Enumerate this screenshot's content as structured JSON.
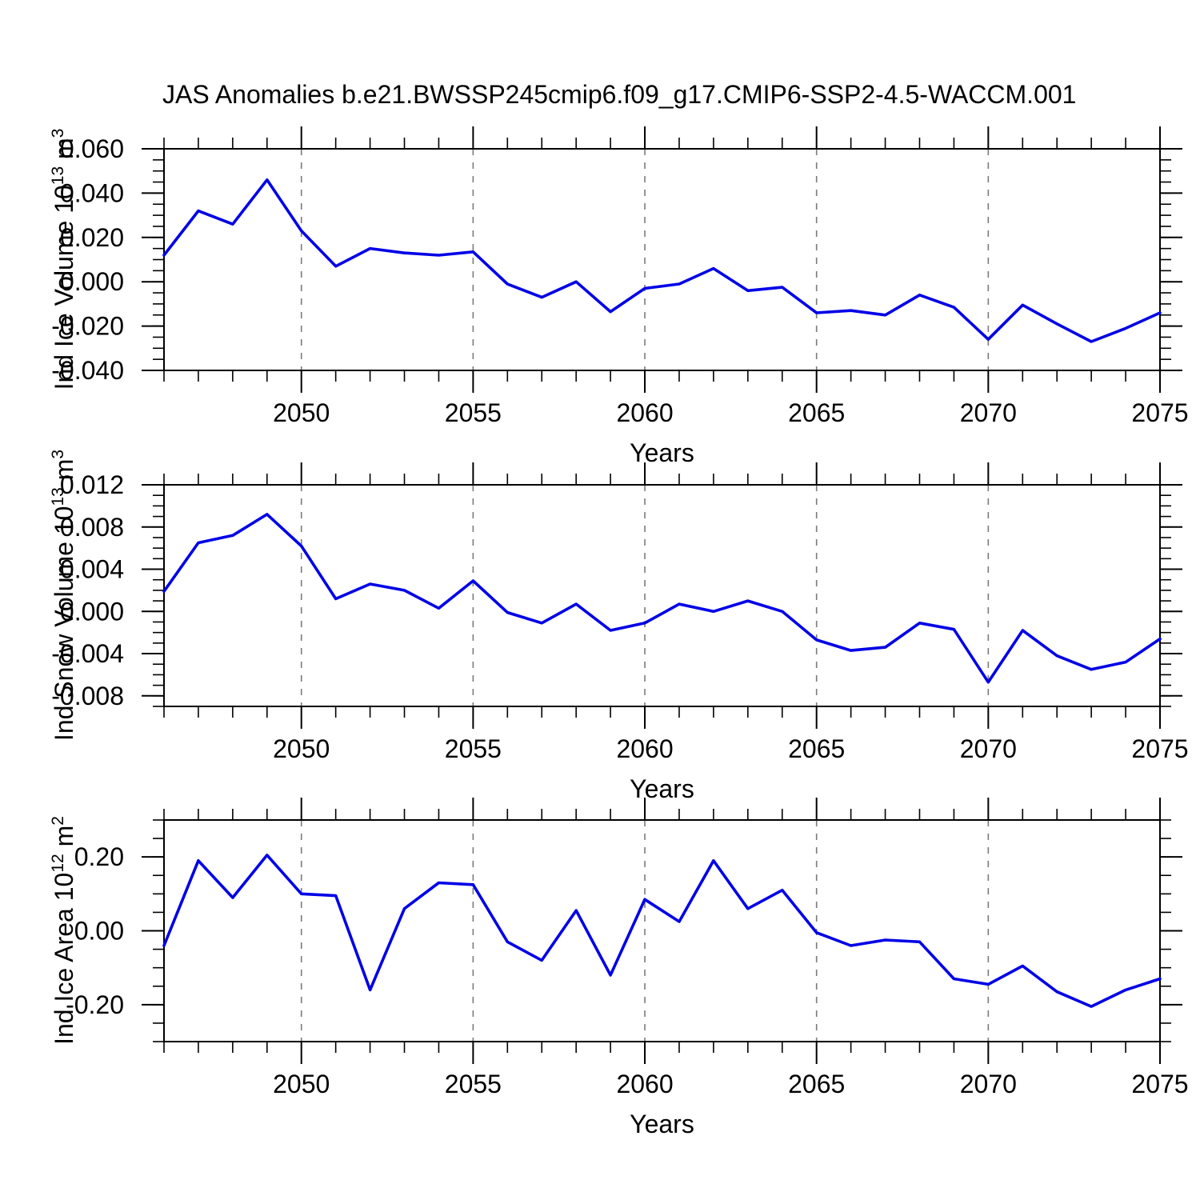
{
  "title": "JAS Anomalies b.e21.BWSSP245cmip6.f09_g17.CMIP6-SSP2-4.5-WACCM.001",
  "colors": {
    "line": "#0000e8",
    "grid": "#7b7b7b",
    "axis": "#000000",
    "text": "#000000",
    "background": "#ffffff"
  },
  "x_axis": {
    "label": "Years",
    "range": [
      2046,
      2075
    ],
    "major_ticks": [
      2050,
      2055,
      2060,
      2065,
      2070,
      2075
    ],
    "minor_step_years": 1,
    "dashed_gridline_years": [
      2050,
      2055,
      2060,
      2065,
      2070
    ]
  },
  "chart_data": [
    {
      "type": "line",
      "name": "ind-ice-volume",
      "ylabel": {
        "base": "Ind Ice Volume 10",
        "exp": "13",
        "unit": " m",
        "unit_exp": "3"
      },
      "ylim": [
        -0.04,
        0.06
      ],
      "ytick_values": [
        0.06,
        0.04,
        0.02,
        0.0,
        -0.02,
        -0.04
      ],
      "ytick_labels": [
        "0.060",
        "0.040",
        "0.020",
        "0.000",
        "-0.020",
        "-0.040"
      ],
      "yminor_step": 0.005,
      "x": [
        2046,
        2047,
        2048,
        2049,
        2050,
        2051,
        2052,
        2053,
        2054,
        2055,
        2056,
        2057,
        2058,
        2059,
        2060,
        2061,
        2062,
        2063,
        2064,
        2065,
        2066,
        2067,
        2068,
        2069,
        2070,
        2071,
        2072,
        2073,
        2074,
        2075
      ],
      "values": [
        0.012,
        0.032,
        0.026,
        0.046,
        0.023,
        0.007,
        0.015,
        0.013,
        0.012,
        0.0135,
        -0.001,
        -0.007,
        0.0,
        -0.0135,
        -0.003,
        -0.001,
        0.006,
        -0.004,
        -0.0025,
        -0.014,
        -0.013,
        -0.015,
        -0.006,
        -0.0115,
        -0.026,
        -0.0105,
        -0.019,
        -0.027,
        -0.021,
        -0.014
      ]
    },
    {
      "type": "line",
      "name": "ind-snow-volume",
      "ylabel": {
        "base": "Ind Snow Volume 10",
        "exp": "13",
        "unit": " m",
        "unit_exp": "3"
      },
      "ylim": [
        -0.009,
        0.012
      ],
      "ytick_values": [
        0.012,
        0.008,
        0.004,
        0.0,
        -0.004,
        -0.008
      ],
      "ytick_labels": [
        "0.012",
        "0.008",
        "0.004",
        "0.000",
        "-0.004",
        "-0.008"
      ],
      "yminor_step": 0.001,
      "x": [
        2046,
        2047,
        2048,
        2049,
        2050,
        2051,
        2052,
        2053,
        2054,
        2055,
        2056,
        2057,
        2058,
        2059,
        2060,
        2061,
        2062,
        2063,
        2064,
        2065,
        2066,
        2067,
        2068,
        2069,
        2070,
        2071,
        2072,
        2073,
        2074,
        2075
      ],
      "values": [
        0.0019,
        0.0065,
        0.0072,
        0.0092,
        0.0062,
        0.0012,
        0.0026,
        0.002,
        0.0003,
        0.0029,
        -0.0001,
        -0.0011,
        0.0007,
        -0.0018,
        -0.0011,
        0.0007,
        0.0,
        0.001,
        0.0,
        -0.0027,
        -0.0037,
        -0.0034,
        -0.0011,
        -0.0017,
        -0.0067,
        -0.0018,
        -0.0042,
        -0.0055,
        -0.0048,
        -0.0026
      ]
    },
    {
      "type": "line",
      "name": "ind-ice-area",
      "ylabel": {
        "base": "Ind Ice Area 10",
        "exp": "12",
        "unit": " m",
        "unit_exp": "2"
      },
      "ylim": [
        -0.3,
        0.3
      ],
      "ytick_values": [
        0.2,
        0.0,
        -0.2
      ],
      "ytick_labels": [
        "0.20",
        "0.00",
        "-0.20"
      ],
      "yminor_step": 0.05,
      "x": [
        2046,
        2047,
        2048,
        2049,
        2050,
        2051,
        2052,
        2053,
        2054,
        2055,
        2056,
        2057,
        2058,
        2059,
        2060,
        2061,
        2062,
        2063,
        2064,
        2065,
        2066,
        2067,
        2068,
        2069,
        2070,
        2071,
        2072,
        2073,
        2074,
        2075
      ],
      "values": [
        -0.04,
        0.19,
        0.09,
        0.205,
        0.1,
        0.095,
        -0.16,
        0.06,
        0.13,
        0.125,
        -0.03,
        -0.08,
        0.055,
        -0.12,
        0.085,
        0.025,
        0.19,
        0.06,
        0.11,
        -0.005,
        -0.04,
        -0.025,
        -0.03,
        -0.13,
        -0.145,
        -0.095,
        -0.165,
        -0.205,
        -0.16,
        -0.13
      ]
    }
  ]
}
